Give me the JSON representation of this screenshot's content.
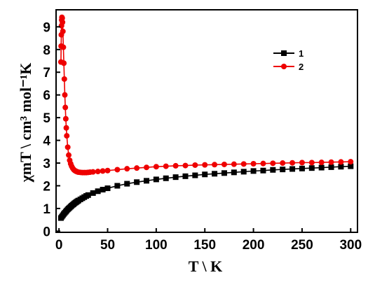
{
  "chart_data": {
    "type": "scatter",
    "xlabel": "T \\ K",
    "ylabel": "χmT \\ cm³ mol⁻¹K",
    "xlim": [
      -3,
      307
    ],
    "ylim": [
      -0.05,
      9.75
    ],
    "xticks": [
      0,
      50,
      100,
      150,
      200,
      250,
      300
    ],
    "yticks": [
      0,
      1,
      2,
      3,
      4,
      5,
      6,
      7,
      8,
      9
    ],
    "grid": false,
    "legend_position": "top-right",
    "series": [
      {
        "name": "1",
        "color": "#000000",
        "marker": "square",
        "x": [
          2,
          3,
          4,
          5,
          6,
          7,
          8,
          9,
          10,
          11,
          12,
          13,
          14,
          15,
          16,
          17,
          18,
          19,
          20,
          22,
          24,
          26,
          28,
          30,
          35,
          40,
          45,
          50,
          60,
          70,
          80,
          90,
          100,
          110,
          120,
          130,
          140,
          150,
          160,
          170,
          180,
          190,
          200,
          210,
          220,
          230,
          240,
          250,
          260,
          270,
          280,
          290,
          300
        ],
        "y": [
          0.58,
          0.64,
          0.7,
          0.76,
          0.81,
          0.86,
          0.91,
          0.96,
          1.0,
          1.04,
          1.08,
          1.12,
          1.16,
          1.19,
          1.23,
          1.26,
          1.29,
          1.32,
          1.35,
          1.4,
          1.45,
          1.5,
          1.55,
          1.59,
          1.68,
          1.76,
          1.83,
          1.89,
          2.0,
          2.09,
          2.16,
          2.22,
          2.28,
          2.33,
          2.38,
          2.42,
          2.46,
          2.5,
          2.53,
          2.56,
          2.59,
          2.62,
          2.65,
          2.67,
          2.7,
          2.72,
          2.74,
          2.76,
          2.78,
          2.8,
          2.82,
          2.84,
          2.86
        ]
      },
      {
        "name": "2",
        "color": "#ee0000",
        "marker": "circle",
        "x": [
          2,
          2.2,
          2.4,
          2.6,
          2.8,
          3,
          3.3,
          3.6,
          4,
          4.5,
          5,
          5.5,
          6,
          6.5,
          7,
          7.5,
          8,
          9,
          10,
          11,
          12,
          13,
          14,
          15,
          16,
          17,
          18,
          19,
          20,
          22,
          24,
          26,
          28,
          30,
          32,
          35,
          40,
          45,
          50,
          60,
          70,
          80,
          90,
          100,
          110,
          120,
          130,
          140,
          150,
          160,
          170,
          180,
          190,
          200,
          210,
          220,
          230,
          240,
          250,
          260,
          270,
          280,
          290,
          300
        ],
        "y": [
          7.45,
          8.15,
          8.65,
          9.05,
          9.3,
          9.42,
          9.38,
          9.2,
          8.8,
          8.1,
          7.4,
          6.7,
          6.0,
          5.45,
          4.95,
          4.55,
          4.2,
          3.7,
          3.35,
          3.12,
          2.97,
          2.86,
          2.78,
          2.72,
          2.68,
          2.65,
          2.63,
          2.61,
          2.6,
          2.59,
          2.58,
          2.58,
          2.58,
          2.59,
          2.6,
          2.61,
          2.63,
          2.65,
          2.67,
          2.71,
          2.75,
          2.78,
          2.81,
          2.84,
          2.86,
          2.88,
          2.89,
          2.91,
          2.92,
          2.93,
          2.94,
          2.95,
          2.96,
          2.97,
          2.98,
          2.99,
          3.0,
          3.01,
          3.02,
          3.02,
          3.03,
          3.04,
          3.05,
          3.06
        ]
      }
    ]
  }
}
